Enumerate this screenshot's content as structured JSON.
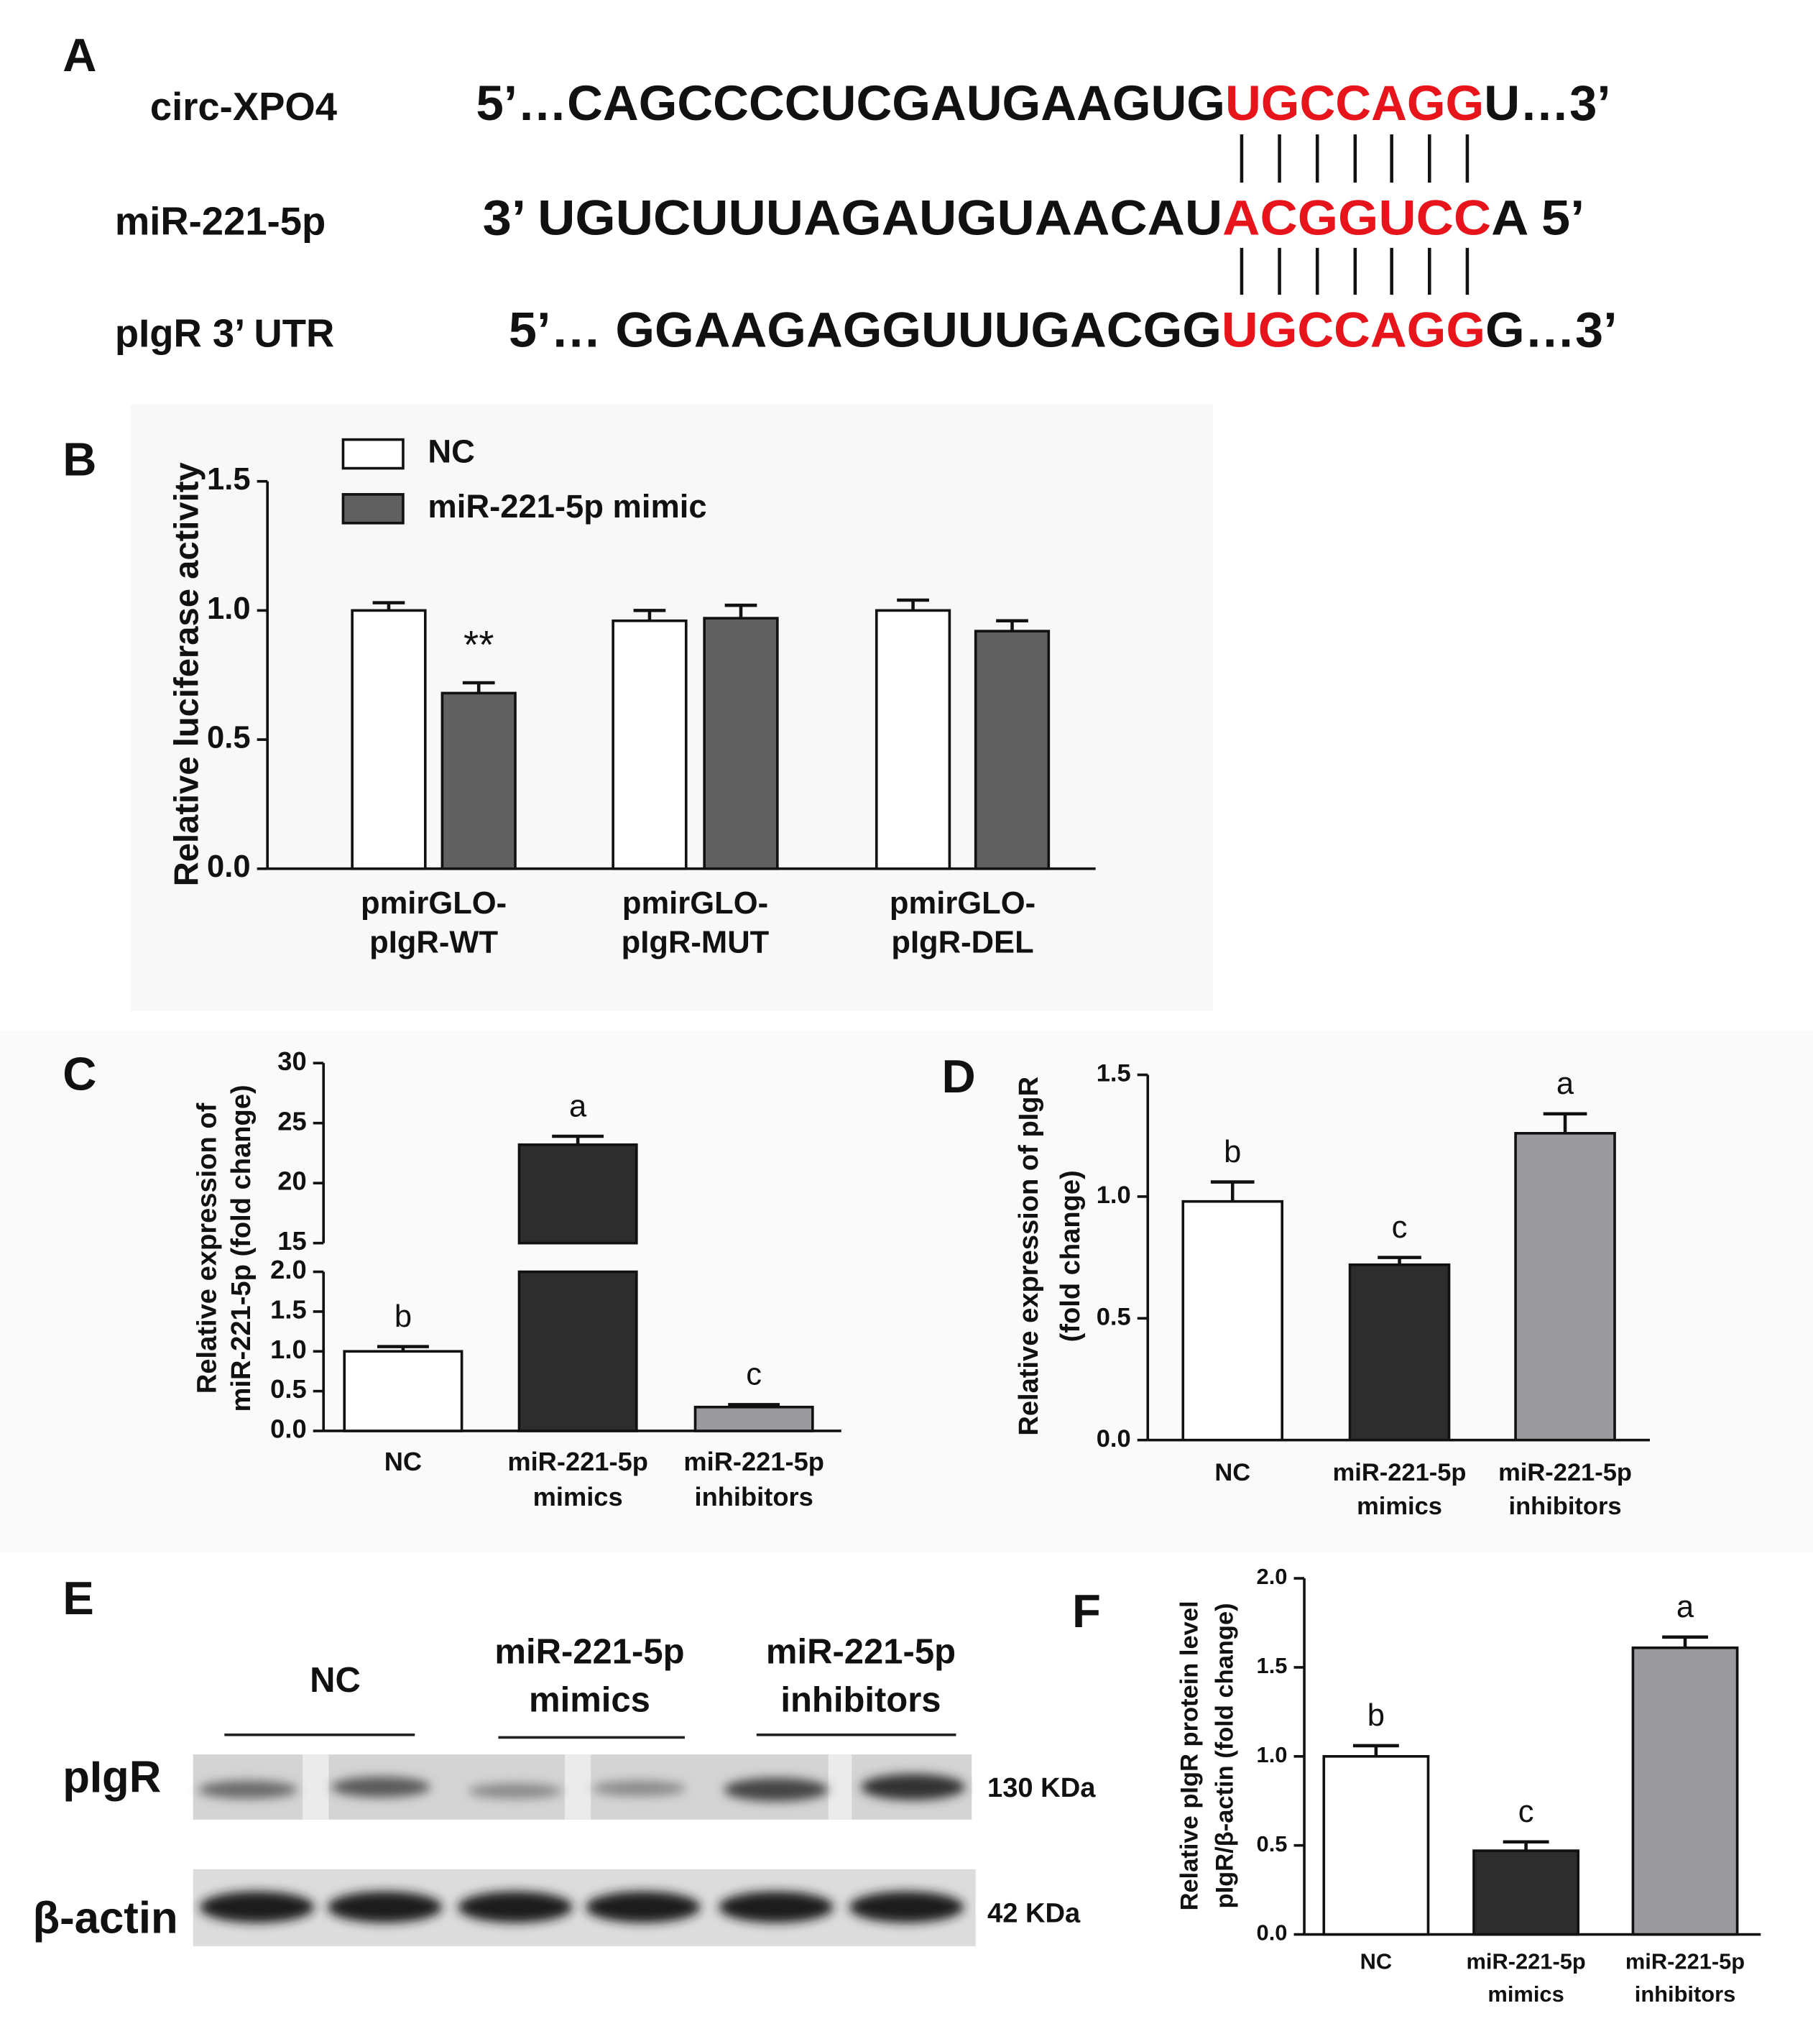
{
  "panel_a": {
    "label": "A",
    "rows": [
      {
        "name": "circ-XPO4",
        "sequence": [
          "5’…CAGCCCCUCGAUGAAGUG",
          "UGCCAGG",
          "U…3’"
        ]
      },
      {
        "name": "miR-221-5p",
        "sequence": [
          "3’ UGUCUUUAGAUGUAACAU",
          "ACGGUCC",
          "A  5’"
        ]
      },
      {
        "name": "pIgR 3’ UTR",
        "sequence": [
          "5’… GGAAGAGGUUUGACGG",
          "UGCCAGG",
          "G…3’"
        ]
      }
    ]
  },
  "panel_e": {
    "label": "E",
    "groups": [
      [
        "NC"
      ],
      [
        "miR-221-5p",
        "mimics"
      ],
      [
        "miR-221-5p",
        "inhibitors"
      ]
    ],
    "rows": [
      {
        "name": "pIgR",
        "size": "130 KDa"
      },
      {
        "name": "β-actin",
        "size": "42 KDa"
      }
    ]
  },
  "chart_data": [
    {
      "type": "bar",
      "panel_label": "B",
      "y_label": [
        "Relative luciferase activity"
      ],
      "categories": [
        [
          "pmirGLO-",
          "pIgR-WT"
        ],
        [
          "pmirGLO-",
          "pIgR-MUT"
        ],
        [
          "pmirGLO-",
          "pIgR-DEL"
        ]
      ],
      "series": [
        {
          "name": "NC",
          "color": "#ffffff",
          "values": [
            1.0,
            0.96,
            1.0
          ],
          "errors": [
            0.03,
            0.04,
            0.04
          ],
          "annotations": [
            null,
            null,
            null
          ]
        },
        {
          "name": "miR-221-5p mimic",
          "color": "#606060",
          "values": [
            0.68,
            0.97,
            0.92
          ],
          "errors": [
            0.04,
            0.05,
            0.04
          ],
          "annotations": [
            "**",
            null,
            null
          ]
        }
      ],
      "ylim": [
        0,
        1.5
      ],
      "yticks": [
        {
          "value": 0,
          "label": "0.0"
        },
        0.5,
        {
          "value": 1,
          "label": "1.0"
        },
        1.5
      ]
    },
    {
      "type": "bar",
      "panel_label": "C",
      "y_label": [
        "Relative expression of",
        "miR-221-5p (fold change)"
      ],
      "categories": [
        [
          "NC"
        ],
        [
          "miR-221-5p",
          "mimics"
        ],
        [
          "miR-221-5p",
          "inhibitors"
        ]
      ],
      "series": [
        {
          "colors": [
            "#ffffff",
            "#2d2d2d",
            "#9b9b9f"
          ],
          "values": [
            1.0,
            23.2,
            0.3
          ],
          "errors": [
            0.06,
            0.7,
            0.03
          ],
          "annotations": [
            "b",
            "a",
            "c"
          ]
        }
      ],
      "ylim": [
        0,
        30
      ],
      "y_break": [
        2,
        15
      ],
      "yticks": [
        {
          "value": 0,
          "label": "0.0"
        },
        0.5,
        {
          "value": 1,
          "label": "1.0"
        },
        1.5,
        {
          "value": 2,
          "label": "2.0"
        },
        15,
        20,
        25,
        30
      ]
    },
    {
      "type": "bar",
      "panel_label": "D",
      "y_label": [
        "Relative expression of pIgR",
        "(fold change)"
      ],
      "categories": [
        [
          "NC"
        ],
        [
          "miR-221-5p",
          "mimics"
        ],
        [
          "miR-221-5p",
          "inhibitors"
        ]
      ],
      "series": [
        {
          "colors": [
            "#ffffff",
            "#2d2d2d",
            "#9b9b9f"
          ],
          "values": [
            0.98,
            0.72,
            1.26
          ],
          "errors": [
            0.08,
            0.03,
            0.08
          ],
          "annotations": [
            "b",
            "c",
            "a"
          ]
        }
      ],
      "ylim": [
        0,
        1.5
      ],
      "yticks": [
        {
          "value": 0,
          "label": "0.0"
        },
        0.5,
        {
          "value": 1,
          "label": "1.0"
        },
        1.5
      ]
    },
    {
      "type": "bar",
      "panel_label": "F",
      "y_label": [
        "Relative pIgR protein level",
        "pIgR/β-actin (fold change)"
      ],
      "categories": [
        [
          "NC"
        ],
        [
          "miR-221-5p",
          "mimics"
        ],
        [
          "miR-221-5p",
          "inhibitors"
        ]
      ],
      "series": [
        {
          "colors": [
            "#ffffff",
            "#2d2d2d",
            "#9b9b9f"
          ],
          "values": [
            1.0,
            0.47,
            1.61
          ],
          "errors": [
            0.06,
            0.05,
            0.06
          ],
          "annotations": [
            "b",
            "c",
            "a"
          ]
        }
      ],
      "ylim": [
        0,
        2
      ],
      "yticks": [
        {
          "value": 0,
          "label": "0.0"
        },
        0.5,
        {
          "value": 1,
          "label": "1.0"
        },
        1.5,
        {
          "value": 2,
          "label": "2.0"
        }
      ]
    }
  ]
}
